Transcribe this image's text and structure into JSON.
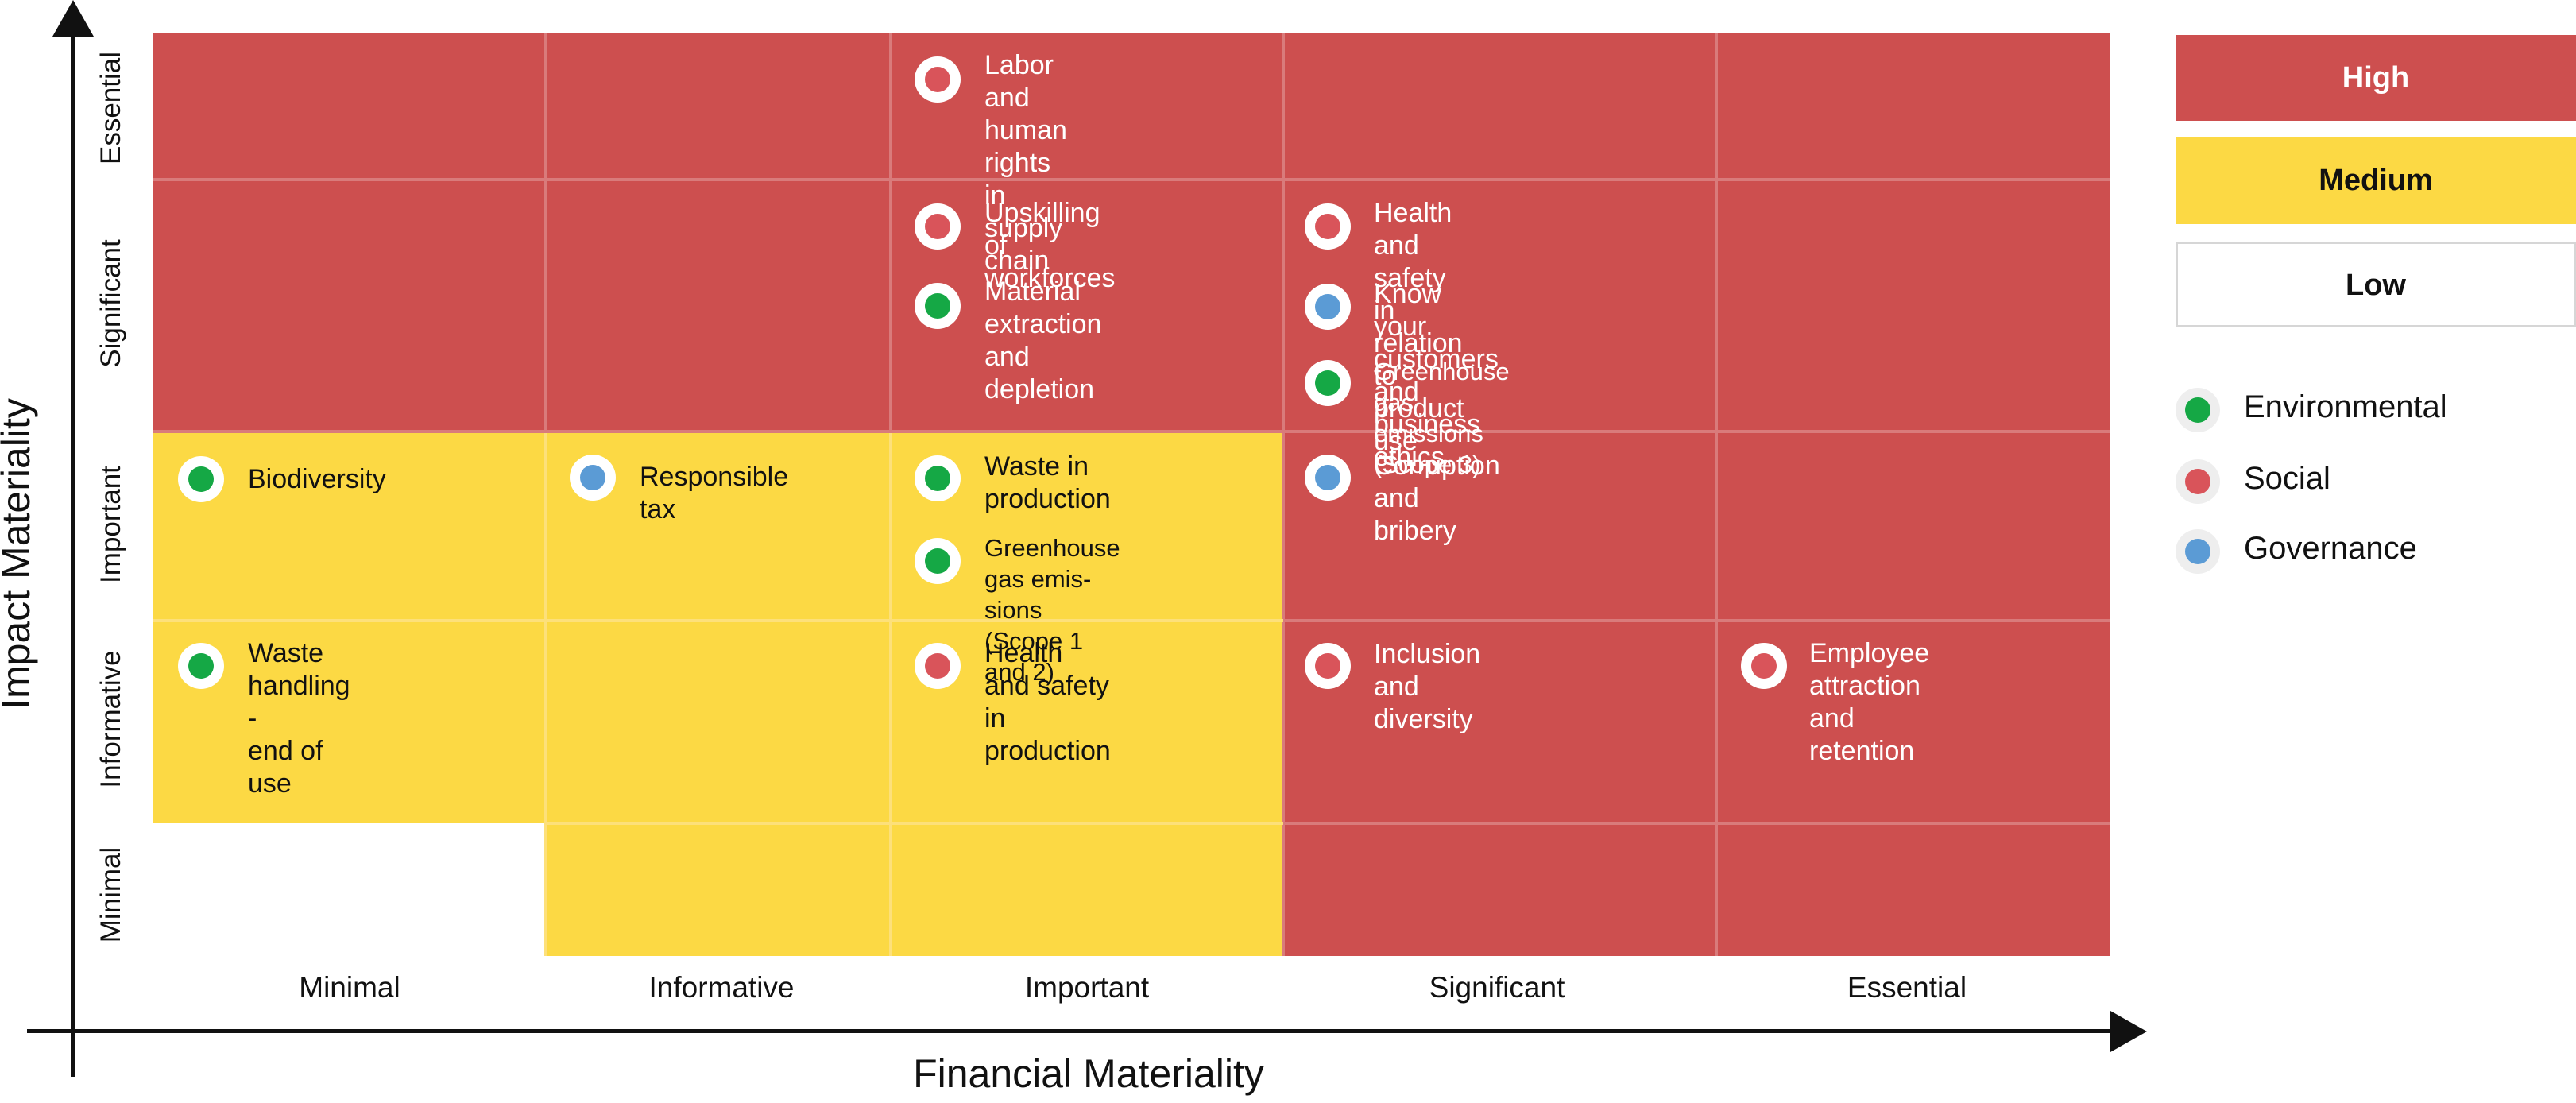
{
  "colors": {
    "high": "#cd4f4f",
    "medium": "#fcd944",
    "low": "#ffffff",
    "environmental": "#15a845",
    "social": "#d9545a",
    "governance": "#5b9bd5"
  },
  "axes": {
    "x_title": "Financial Materiality",
    "y_title": "Impact Materiality",
    "x_ticks": [
      "Minimal",
      "Informative",
      "Important",
      "Significant",
      "Essential"
    ],
    "y_ticks": [
      "Minimal",
      "Informative",
      "Important",
      "Significant",
      "Essential"
    ]
  },
  "grid_levels": [
    [
      "low",
      "medium",
      "medium",
      "high",
      "high"
    ],
    [
      "medium",
      "medium",
      "medium",
      "high",
      "high"
    ],
    [
      "medium",
      "medium",
      "medium",
      "high",
      "high"
    ],
    [
      "high",
      "high",
      "high",
      "high",
      "high"
    ],
    [
      "high",
      "high",
      "high",
      "high",
      "high"
    ]
  ],
  "topics": [
    {
      "label": "Labor and\nhuman rights in\nsupply chain",
      "category": "social"
    },
    {
      "label": "Upskilling of\nworkforces",
      "category": "social"
    },
    {
      "label": "Material extraction\nand depletion",
      "category": "environmental"
    },
    {
      "label": "Health and safety in\nrelation to product use",
      "category": "social"
    },
    {
      "label": "Know your customers\nand business ethics",
      "category": "governance"
    },
    {
      "label": "Greenhouse gas\nemissions (Scope 3)",
      "category": "environmental"
    },
    {
      "label": "Biodiversity",
      "category": "environmental"
    },
    {
      "label": "Responsible tax",
      "category": "governance"
    },
    {
      "label": "Waste in\nproduction",
      "category": "environmental"
    },
    {
      "label": "Greenhouse gas emis-\nsions (Scope 1 and 2)",
      "category": "environmental"
    },
    {
      "label": "Corruption and\nbribery",
      "category": "governance"
    },
    {
      "label": "Waste handling -\nend of use",
      "category": "environmental"
    },
    {
      "label": "Health and safety in\nproduction",
      "category": "social"
    },
    {
      "label": "Inclusion and\ndiversity",
      "category": "social"
    },
    {
      "label": "Employee attraction\nand retention",
      "category": "social"
    }
  ],
  "legend": {
    "levels": [
      "High",
      "Medium",
      "Low"
    ],
    "categories": [
      {
        "label": "Environmental",
        "category": "environmental"
      },
      {
        "label": "Social",
        "category": "social"
      },
      {
        "label": "Governance",
        "category": "governance"
      }
    ]
  }
}
